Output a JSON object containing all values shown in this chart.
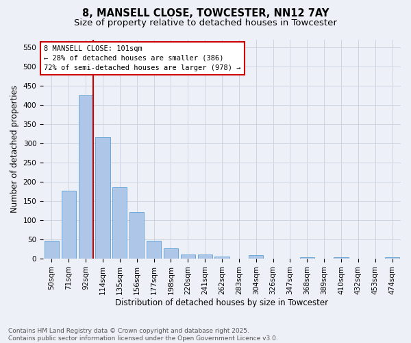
{
  "title_line1": "8, MANSELL CLOSE, TOWCESTER, NN12 7AY",
  "title_line2": "Size of property relative to detached houses in Towcester",
  "xlabel": "Distribution of detached houses by size in Towcester",
  "ylabel": "Number of detached properties",
  "categories": [
    "50sqm",
    "71sqm",
    "92sqm",
    "114sqm",
    "135sqm",
    "156sqm",
    "177sqm",
    "198sqm",
    "220sqm",
    "241sqm",
    "262sqm",
    "283sqm",
    "304sqm",
    "326sqm",
    "347sqm",
    "368sqm",
    "389sqm",
    "410sqm",
    "432sqm",
    "453sqm",
    "474sqm"
  ],
  "values": [
    47,
    176,
    424,
    315,
    186,
    122,
    47,
    27,
    11,
    10,
    5,
    0,
    9,
    0,
    0,
    4,
    0,
    3,
    0,
    0,
    3
  ],
  "bar_color": "#aec6e8",
  "bar_edge_color": "#5a9fd4",
  "vline_bar_index": 2,
  "annotation_box_line1": "8 MANSELL CLOSE: 101sqm",
  "annotation_box_line2": "← 28% of detached houses are smaller (386)",
  "annotation_box_line3": "72% of semi-detached houses are larger (978) →",
  "annotation_box_color": "#ffffff",
  "annotation_box_edge_color": "#cc0000",
  "vline_color": "#cc0000",
  "grid_color": "#cdd5e2",
  "background_color": "#edf1f7",
  "ylim": [
    0,
    570
  ],
  "yticks": [
    0,
    50,
    100,
    150,
    200,
    250,
    300,
    350,
    400,
    450,
    500,
    550
  ],
  "footnote_line1": "Contains HM Land Registry data © Crown copyright and database right 2025.",
  "footnote_line2": "Contains public sector information licensed under the Open Government Licence v3.0.",
  "title_fontsize": 10.5,
  "subtitle_fontsize": 9.5,
  "axis_label_fontsize": 8.5,
  "tick_fontsize": 7.5,
  "annotation_fontsize": 7.5,
  "footnote_fontsize": 6.5
}
